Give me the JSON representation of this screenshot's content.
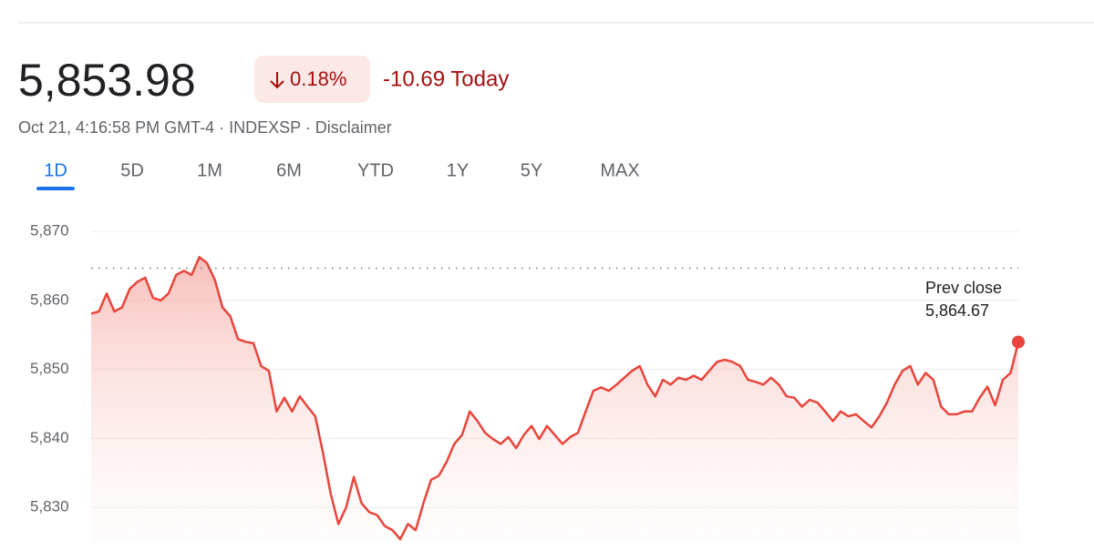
{
  "quote": {
    "price": "5,853.98",
    "change_pct": "0.18%",
    "change_today": "-10.69 Today",
    "meta": "Oct 21, 4:16:58 PM GMT-4 · INDEXSP · Disclaimer"
  },
  "tabs": [
    {
      "label": "1D",
      "active": true
    },
    {
      "label": "5D",
      "active": false
    },
    {
      "label": "1M",
      "active": false
    },
    {
      "label": "6M",
      "active": false
    },
    {
      "label": "YTD",
      "active": false
    },
    {
      "label": "1Y",
      "active": false
    },
    {
      "label": "5Y",
      "active": false
    },
    {
      "label": "MAX",
      "active": false
    }
  ],
  "chart_data": {
    "type": "line",
    "color": "#e8453c",
    "ylim": [
      5825,
      5872
    ],
    "yticks": [
      {
        "value": 5830,
        "label": "5,830"
      },
      {
        "value": 5840,
        "label": "5,840"
      },
      {
        "value": 5850,
        "label": "5,850"
      },
      {
        "value": 5860,
        "label": "5,860"
      },
      {
        "value": 5870,
        "label": "5,870"
      }
    ],
    "grid": true,
    "prev_close": 5864.67,
    "prev_close_title": "Prev close",
    "prev_close_label": "5,864.67",
    "values": [
      5858.1,
      5858.4,
      5861.0,
      5858.4,
      5859.0,
      5861.7,
      5862.7,
      5863.3,
      5860.4,
      5860.0,
      5861.0,
      5863.7,
      5864.3,
      5863.7,
      5866.3,
      5865.4,
      5863.0,
      5859.0,
      5857.7,
      5854.4,
      5854.0,
      5853.8,
      5850.5,
      5849.8,
      5843.9,
      5845.9,
      5843.9,
      5846.1,
      5844.6,
      5843.2,
      5837.9,
      5832.0,
      5827.6,
      5830.0,
      5834.4,
      5830.6,
      5829.3,
      5828.9,
      5827.3,
      5826.7,
      5825.4,
      5827.6,
      5826.7,
      5830.6,
      5834.0,
      5834.6,
      5836.6,
      5839.2,
      5840.5,
      5843.9,
      5842.5,
      5840.8,
      5839.9,
      5839.2,
      5840.2,
      5838.6,
      5840.5,
      5841.8,
      5839.9,
      5841.8,
      5840.5,
      5839.2,
      5840.2,
      5840.8,
      5843.9,
      5846.9,
      5847.4,
      5846.9,
      5847.8,
      5848.8,
      5849.8,
      5850.5,
      5847.8,
      5846.1,
      5848.5,
      5847.8,
      5848.8,
      5848.5,
      5849.1,
      5848.5,
      5849.8,
      5851.1,
      5851.4,
      5851.1,
      5850.5,
      5848.5,
      5848.2,
      5847.8,
      5848.8,
      5847.8,
      5846.1,
      5845.9,
      5844.6,
      5845.6,
      5845.2,
      5843.9,
      5842.5,
      5843.9,
      5843.2,
      5843.5,
      5842.5,
      5841.6,
      5843.2,
      5845.2,
      5847.8,
      5849.8,
      5850.5,
      5847.8,
      5849.5,
      5848.5,
      5844.6,
      5843.5,
      5843.5,
      5843.9,
      5843.9,
      5845.9,
      5847.5,
      5844.8,
      5848.5,
      5849.5,
      5853.98
    ]
  }
}
